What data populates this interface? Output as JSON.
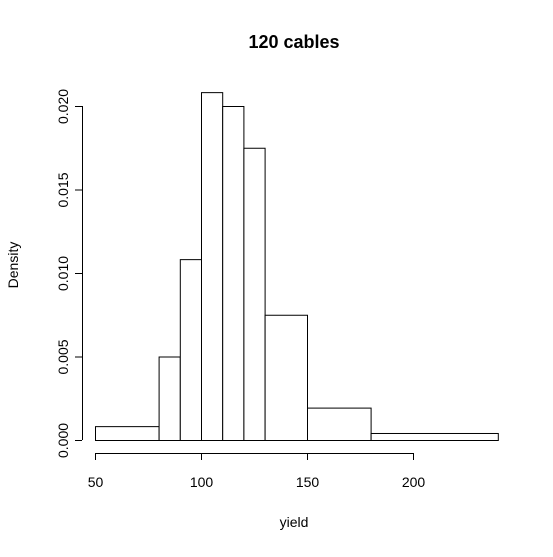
{
  "chart_data": {
    "type": "bar",
    "subtype": "histogram",
    "title": "120 cables",
    "xlabel": "yield",
    "ylabel": "Density",
    "xlim": [
      50,
      240
    ],
    "ylim": [
      0,
      0.021
    ],
    "x_ticks": [
      50,
      100,
      150,
      200
    ],
    "y_ticks": [
      "0.000",
      "0.005",
      "0.010",
      "0.015",
      "0.020"
    ],
    "bins": [
      {
        "from": 50,
        "to": 80,
        "density": 0.00083
      },
      {
        "from": 80,
        "to": 90,
        "density": 0.005
      },
      {
        "from": 90,
        "to": 100,
        "density": 0.01083
      },
      {
        "from": 100,
        "to": 110,
        "density": 0.02083
      },
      {
        "from": 110,
        "to": 120,
        "density": 0.02
      },
      {
        "from": 120,
        "to": 130,
        "density": 0.0175
      },
      {
        "from": 130,
        "to": 150,
        "density": 0.0075
      },
      {
        "from": 150,
        "to": 180,
        "density": 0.00194
      },
      {
        "from": 180,
        "to": 240,
        "density": 0.00042
      }
    ],
    "bar_fill": "#ffffff",
    "bar_stroke": "#000000",
    "grid": false,
    "legend": "none"
  }
}
